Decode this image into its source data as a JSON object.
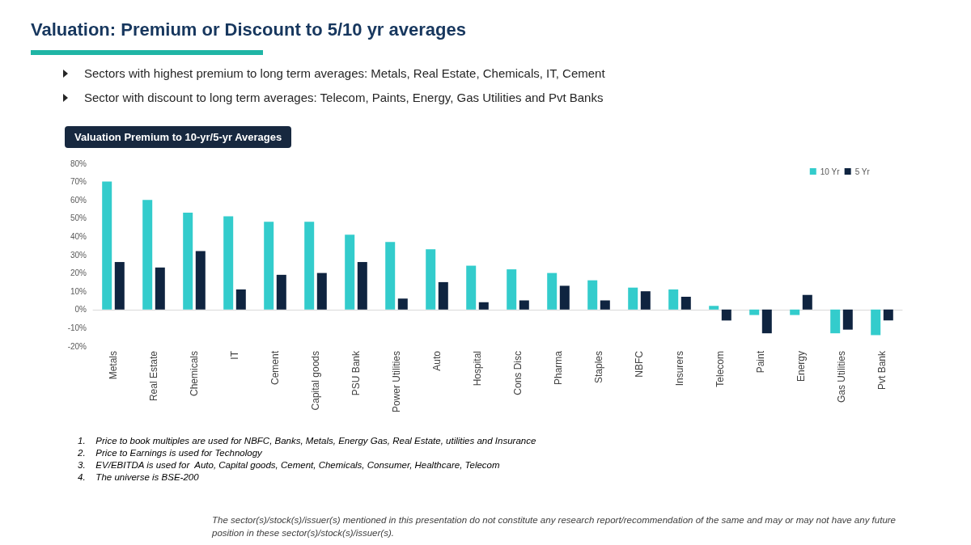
{
  "chart_data": {
    "type": "bar",
    "title": "Valuation: Premium or Discount to 5/10 yr averages",
    "subtitle": "Valuation Premium to 10-yr/5-yr Averages",
    "annotations": [
      "Sectors with highest premium to long term averages: Metals, Real Estate, Chemicals, IT, Cement",
      "Sector with discount to long term averages: Telecom, Paints, Energy, Gas Utilities and Pvt Banks",
      "1.    Price to book multiples are used for NBFC, Banks, Metals, Energy Gas, Real Estate, utilities and Insurance",
      "2.    Price to Earnings is used for Technology",
      "3.    EV/EBITDA is used for  Auto, Capital goods, Cement, Chemicals, Consumer, Healthcare, Telecom",
      "4.    The universe is BSE-200",
      "The sector(s)/stock(s)/issuer(s) mentioned in this presentation do not constitute any research report/recommendation of the same and may or may not have any future position in these sector(s)/stock(s)/issuer(s)."
    ],
    "categories": [
      "Metals",
      "Real Estate",
      "Chemicals",
      "IT",
      "Cement",
      "Capital goods",
      "PSU Bank",
      "Power Utilities",
      "Auto",
      "Hospital",
      "Cons Disc",
      "Pharma",
      "Staples",
      "NBFC",
      "Insurers",
      "Telecom",
      "Paint",
      "Energy",
      "Gas Utilities",
      "Pvt Bank"
    ],
    "series": [
      {
        "name": "10 Yr",
        "color": "#33cccc",
        "values": [
          70,
          60,
          53,
          51,
          48,
          48,
          41,
          37,
          33,
          24,
          22,
          20,
          16,
          12,
          11,
          2,
          -3,
          -3,
          -13,
          -14
        ]
      },
      {
        "name": "5 Yr",
        "color": "#0f2440",
        "values": [
          26,
          23,
          32,
          11,
          19,
          20,
          26,
          6,
          15,
          4,
          5,
          13,
          5,
          10,
          7,
          -6,
          -13,
          8,
          -11,
          -6
        ]
      }
    ],
    "ylim": [
      -20,
      80
    ],
    "yticks": [
      {
        "value": -20,
        "label": "-20%"
      },
      {
        "value": -10,
        "label": "-10%"
      },
      {
        "value": 0,
        "label": "0%"
      },
      {
        "value": 10,
        "label": "10%"
      },
      {
        "value": 20,
        "label": "20%"
      },
      {
        "value": 30,
        "label": "30%"
      },
      {
        "value": 40,
        "label": "40%"
      },
      {
        "value": 50,
        "label": "50%"
      },
      {
        "value": 60,
        "label": "60%"
      },
      {
        "value": 70,
        "label": "70%"
      },
      {
        "value": 80,
        "label": "80%"
      }
    ],
    "legend": "top right"
  }
}
